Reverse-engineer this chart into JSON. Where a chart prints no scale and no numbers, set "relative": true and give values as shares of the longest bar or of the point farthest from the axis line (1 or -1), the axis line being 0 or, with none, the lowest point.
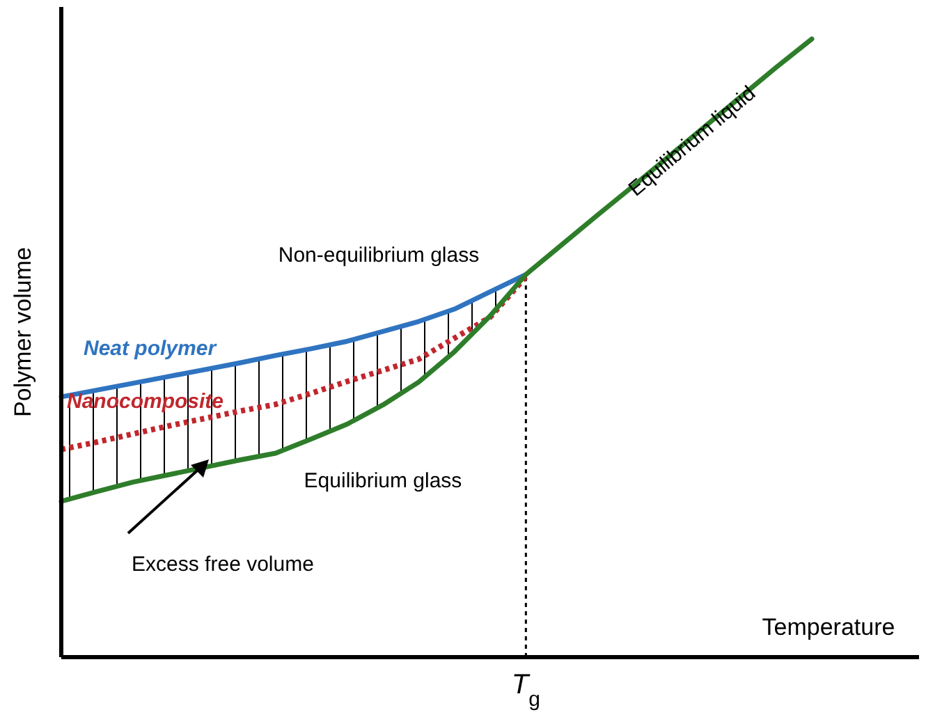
{
  "chart_data": {
    "type": "line",
    "relative": true,
    "xlabel": "Temperature",
    "ylabel": "Polymer volume",
    "marker": "none",
    "categories": [
      null,
      null,
      null,
      null,
      null,
      null,
      null,
      null,
      null,
      null,
      null,
      null,
      null,
      null,
      null,
      null,
      null,
      null,
      null,
      null,
      null,
      null,
      null,
      null,
      null
    ],
    "series": [
      {
        "name": "Neat polymer",
        "color": "#2f74c0",
        "values": [
          0.421,
          0.432,
          0.443,
          0.454,
          0.465,
          0.476,
          0.488,
          0.499,
          0.511,
          0.527,
          0.543,
          0.563,
          0.591,
          0.619,
          null,
          null,
          null,
          null,
          null,
          null,
          null,
          null,
          null,
          null,
          null
        ]
      },
      {
        "name": "Nanocomposite",
        "color": "#c0272d",
        "line_style": "dotted",
        "values": [
          0.336,
          0.348,
          0.361,
          0.374,
          0.386,
          0.398,
          0.409,
          0.427,
          0.446,
          0.464,
          0.482,
          0.516,
          0.55,
          0.615,
          null,
          null,
          null,
          null,
          null,
          null,
          null,
          null,
          null,
          null,
          null
        ]
      },
      {
        "color": "#2e7d2a",
        "values": [
          0.252,
          0.268,
          0.283,
          0.295,
          0.307,
          0.319,
          0.33,
          0.353,
          0.377,
          0.408,
          0.445,
          0.494,
          0.552,
          0.619,
          0.667,
          0.715,
          0.762,
          0.81,
          0.858,
          0.906,
          0.954,
          1,
          null,
          null,
          null
        ]
      }
    ],
    "annotations": [
      "Non-equilibrium glass",
      "Equilibrium glass",
      "Equilibrium liquid",
      "Excess free volume",
      "T$_{g}$"
    ]
  }
}
